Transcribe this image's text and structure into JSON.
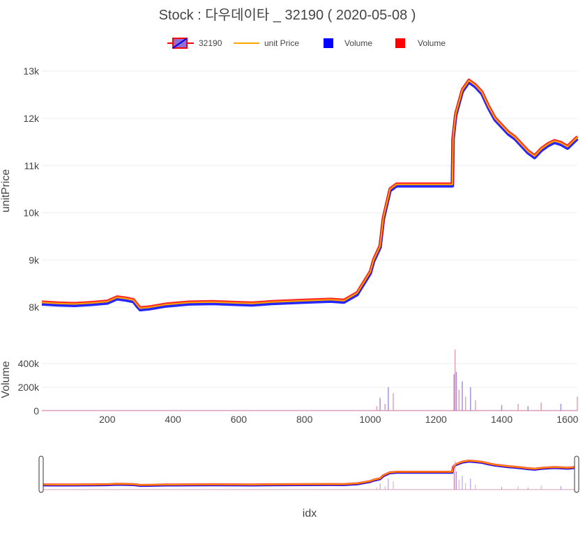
{
  "chart_data": {
    "type": "candlestick",
    "title": "Stock :  다우데이타 _ 32190 ( 2020-05-08 )",
    "xlabel": "idx",
    "legend": {
      "placement": "top",
      "entries": [
        {
          "name": "32190",
          "kind": "candlestick"
        },
        {
          "name": "unit Price",
          "kind": "line",
          "color": "#ffa500"
        },
        {
          "name": "Volume",
          "kind": "bar",
          "color": "#0000ff"
        },
        {
          "name": "Volume",
          "kind": "bar",
          "color": "#ff0000"
        }
      ]
    },
    "colors": {
      "increasing": "#ff0000",
      "decreasing": "#0000ff",
      "unit_price_line": "#ffa500",
      "grid": "#eeeeee"
    },
    "x_range": [
      1,
      1630
    ],
    "x_ticks": [
      200,
      400,
      600,
      800,
      1000,
      1200,
      1400,
      1600
    ],
    "x_tick_labels": [
      "200",
      "400",
      "600",
      "800",
      "1000",
      "1200",
      "1400",
      "1600"
    ],
    "price_panel": {
      "ylabel": "unitPrice",
      "ylim": [
        7900,
        13150
      ],
      "y_ticks": [
        8000,
        9000,
        10000,
        11000,
        12000,
        13000
      ],
      "y_tick_labels": [
        "8k",
        "9k",
        "10k",
        "11k",
        "12k",
        "13k"
      ],
      "grid": true
    },
    "volume_panel": {
      "ylabel": "Volume",
      "ylim": [
        0,
        530000
      ],
      "y_ticks": [
        0,
        200000,
        400000
      ],
      "y_tick_labels": [
        "0",
        "200k",
        "400k"
      ],
      "grid": true
    },
    "range_slider": true,
    "price_series": {
      "name": "unit Price",
      "x": [
        1,
        50,
        100,
        150,
        200,
        230,
        260,
        280,
        290,
        300,
        330,
        380,
        450,
        520,
        600,
        640,
        700,
        800,
        880,
        920,
        960,
        1000,
        1010,
        1030,
        1040,
        1060,
        1080,
        1100,
        1150,
        1250,
        1252,
        1260,
        1280,
        1300,
        1320,
        1340,
        1360,
        1380,
        1400,
        1420,
        1440,
        1460,
        1480,
        1500,
        1520,
        1540,
        1560,
        1580,
        1600,
        1630
      ],
      "y": [
        8100,
        8080,
        8070,
        8090,
        8120,
        8210,
        8180,
        8150,
        8060,
        7980,
        8000,
        8060,
        8100,
        8110,
        8090,
        8080,
        8110,
        8140,
        8160,
        8140,
        8300,
        8750,
        9000,
        9300,
        9900,
        10500,
        10600,
        10600,
        10600,
        10600,
        11600,
        12100,
        12600,
        12800,
        12700,
        12550,
        12250,
        12000,
        11850,
        11700,
        11600,
        11450,
        11300,
        11200,
        11350,
        11450,
        11520,
        11480,
        11400,
        11600
      ]
    },
    "volume_spikes": {
      "x": [
        1020,
        1030,
        1045,
        1055,
        1070,
        1255,
        1258,
        1262,
        1270,
        1280,
        1290,
        1305,
        1320,
        1400,
        1450,
        1480,
        1520,
        1580,
        1630
      ],
      "values": [
        40000,
        110000,
        60000,
        200000,
        150000,
        310000,
        520000,
        330000,
        180000,
        250000,
        120000,
        200000,
        90000,
        50000,
        60000,
        40000,
        70000,
        60000,
        120000
      ]
    }
  }
}
